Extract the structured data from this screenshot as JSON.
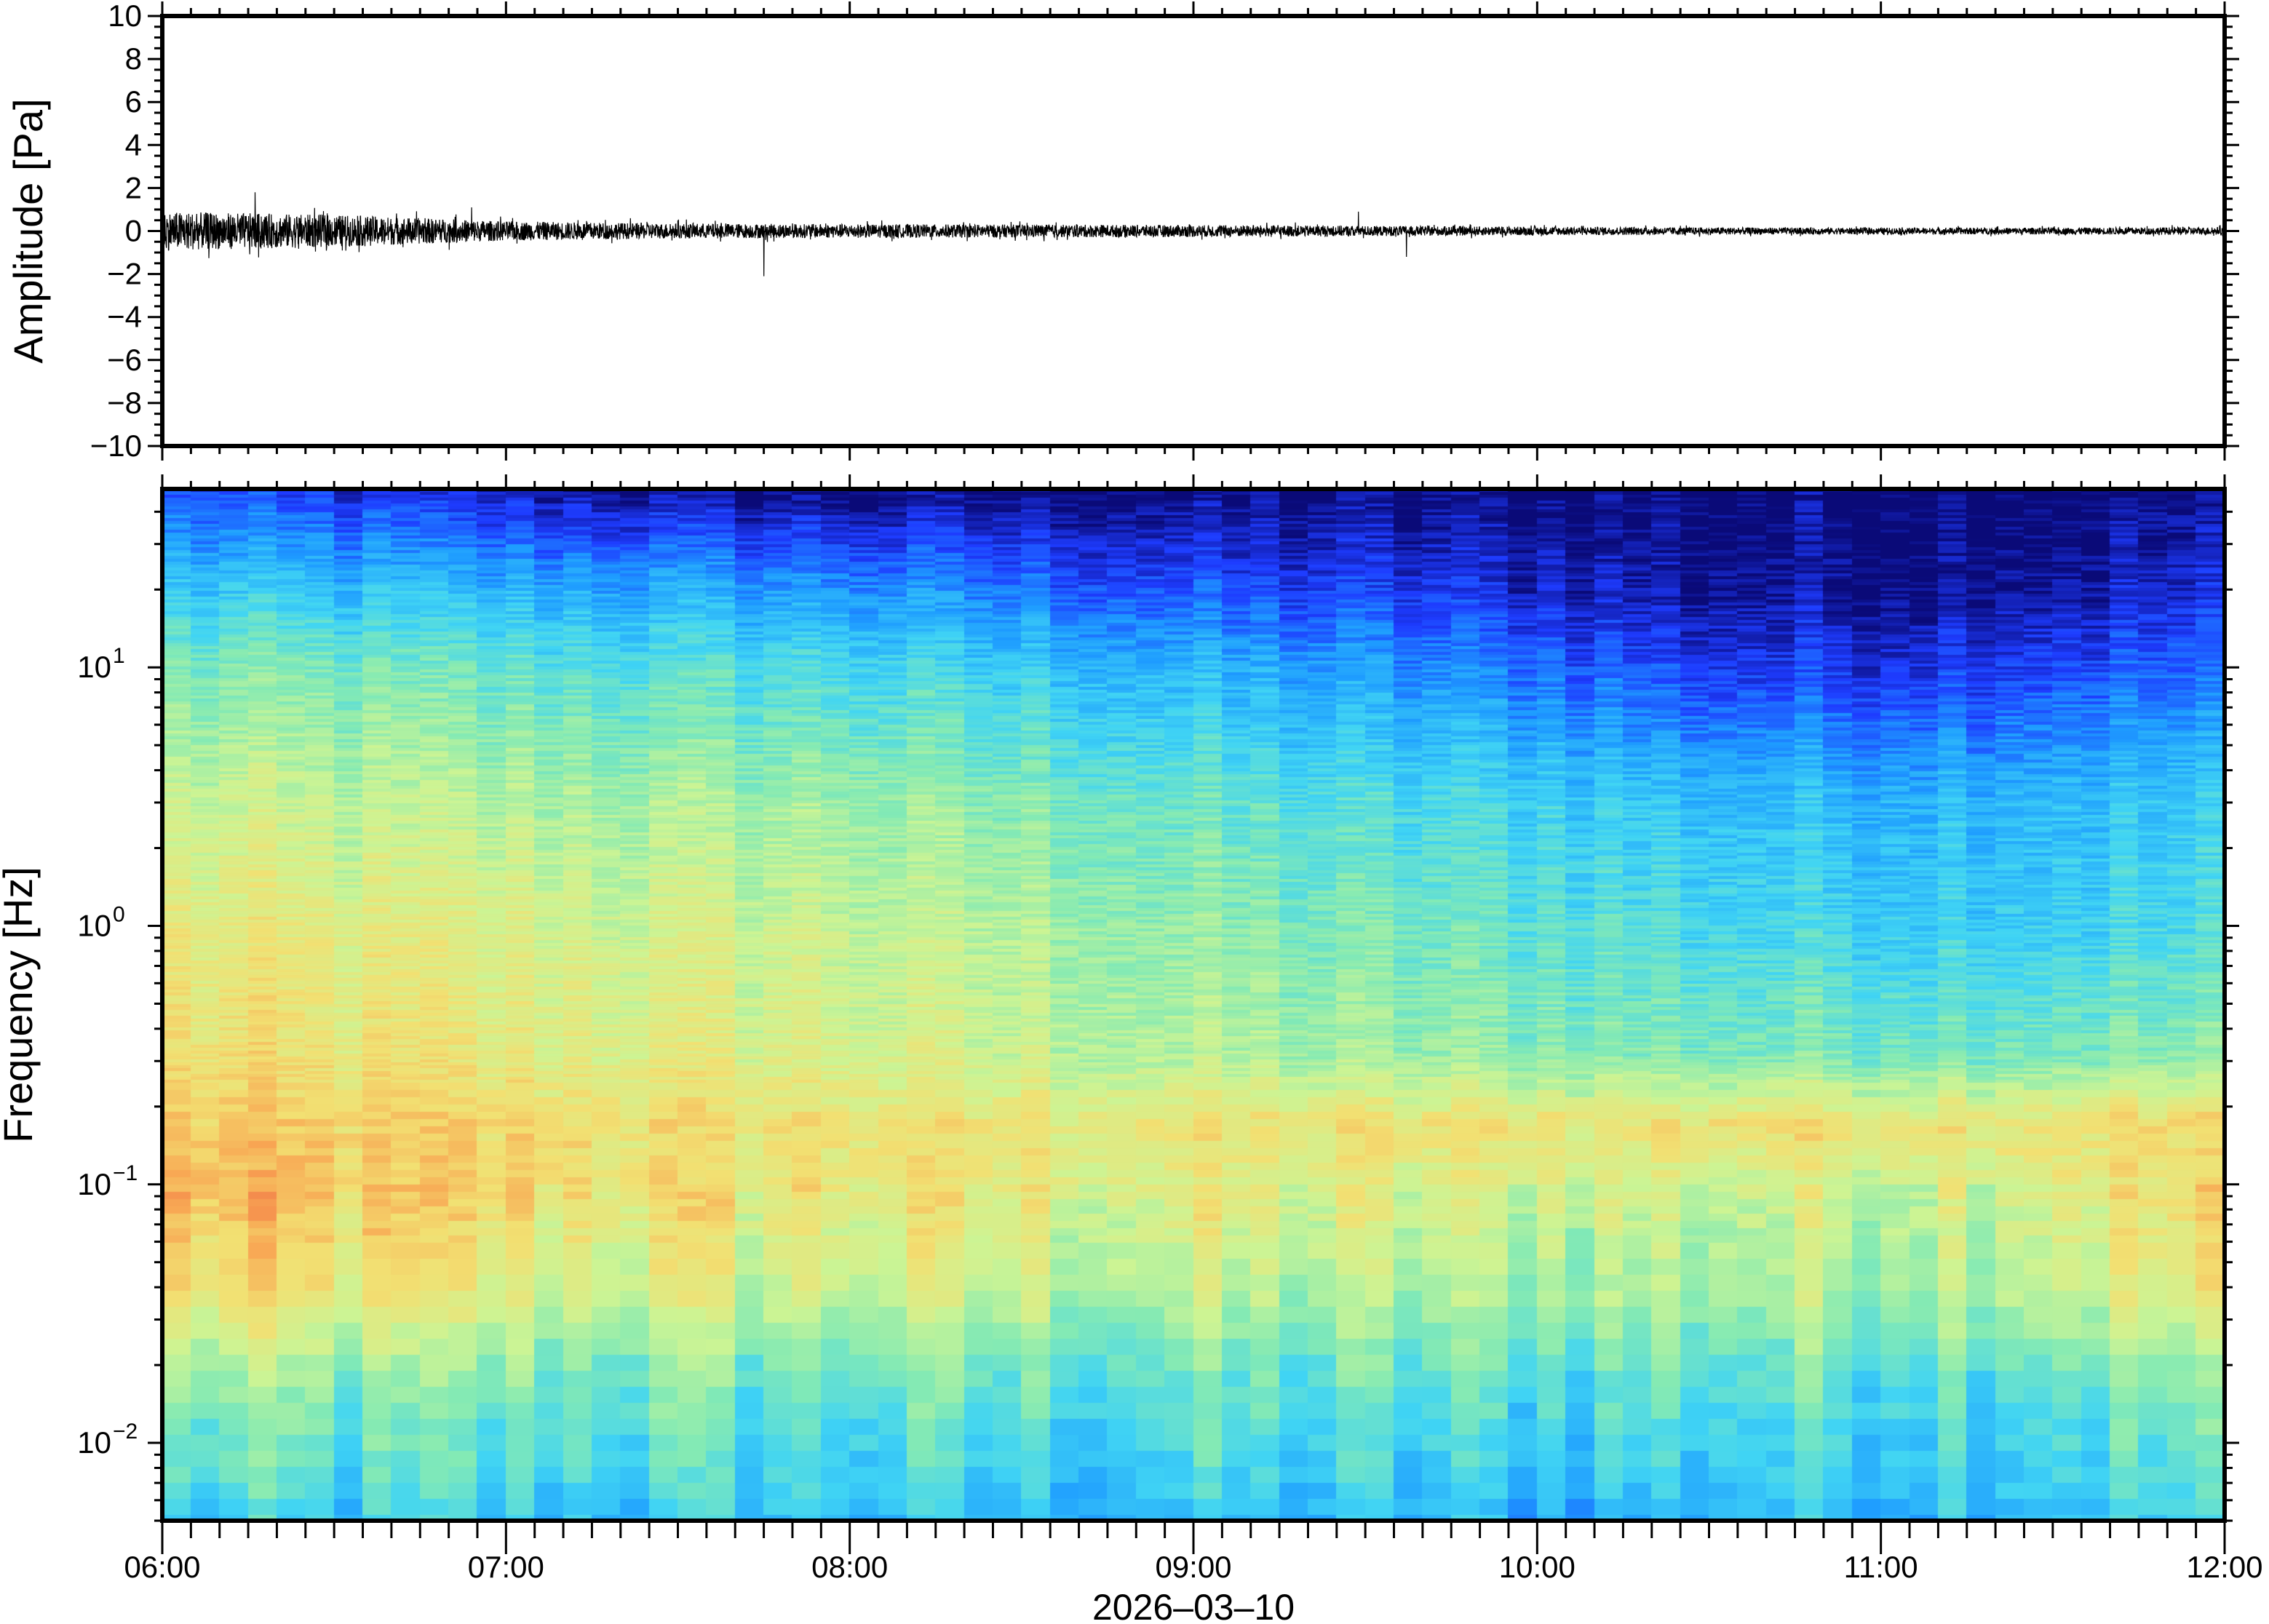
{
  "chart_data": [
    {
      "type": "line",
      "panel": "waveform",
      "ylabel": "Amplitude [Pa]",
      "ylim": [
        -10,
        10
      ],
      "yticks": [
        "10",
        "8",
        "6",
        "4",
        "2",
        "0",
        "−2",
        "−4",
        "−6",
        "−8",
        "−10"
      ],
      "ytick_values": [
        10,
        8,
        6,
        4,
        2,
        0,
        -2,
        -4,
        -6,
        -8,
        -10
      ],
      "x_range_hours": [
        6,
        12
      ],
      "envelope_time_hours": [
        6.0,
        6.5,
        7.0,
        7.5,
        8.0,
        8.5,
        9.0,
        9.5,
        10.0,
        10.5,
        11.0,
        11.5,
        12.0
      ],
      "envelope_amplitude_pa": [
        0.9,
        0.75,
        0.45,
        0.35,
        0.32,
        0.3,
        0.28,
        0.24,
        0.2,
        0.17,
        0.15,
        0.16,
        0.18
      ],
      "spikes": [
        {
          "time_hours": 6.27,
          "value_pa": 1.8
        },
        {
          "time_hours": 6.9,
          "value_pa": 1.1
        },
        {
          "time_hours": 7.75,
          "value_pa": -2.1
        },
        {
          "time_hours": 9.48,
          "value_pa": 0.9
        },
        {
          "time_hours": 9.62,
          "value_pa": -1.2
        }
      ],
      "color": "#000000"
    },
    {
      "type": "heatmap",
      "panel": "spectrogram",
      "ylabel": "Frequency [Hz]",
      "xlabel": "2026–03–10",
      "yscale": "log",
      "ylim_hz": [
        0.005,
        49
      ],
      "ytick_bases": [
        "10",
        "10",
        "10",
        "10"
      ],
      "ytick_exponents": [
        "1",
        "0",
        "−1",
        "−2"
      ],
      "ytick_values": [
        10,
        1,
        0.1,
        0.01
      ],
      "xticks": [
        "06:00",
        "07:00",
        "08:00",
        "09:00",
        "10:00",
        "11:00",
        "12:00"
      ],
      "time_hours": [
        6.0,
        6.5,
        7.0,
        7.5,
        8.0,
        8.5,
        9.0,
        9.5,
        10.0,
        10.5,
        11.0,
        11.5,
        12.0
      ],
      "log10_freq": [
        1.69,
        1.3,
        1.0,
        0.5,
        0.0,
        -0.5,
        -0.75,
        -1.0,
        -1.4,
        -1.7,
        -2.3
      ],
      "relative_power": [
        [
          0.15,
          0.1,
          0.05,
          0.02,
          0.0,
          0.0,
          0.0,
          0.0,
          0.0,
          0.0,
          0.0,
          0.0,
          0.0
        ],
        [
          0.35,
          0.33,
          0.3,
          0.28,
          0.25,
          0.2,
          0.15,
          0.12,
          0.08,
          0.03,
          0.03,
          0.05,
          0.08
        ],
        [
          0.5,
          0.48,
          0.45,
          0.42,
          0.4,
          0.35,
          0.3,
          0.25,
          0.2,
          0.12,
          0.12,
          0.15,
          0.18
        ],
        [
          0.62,
          0.6,
          0.58,
          0.56,
          0.55,
          0.5,
          0.45,
          0.4,
          0.38,
          0.33,
          0.32,
          0.33,
          0.35
        ],
        [
          0.7,
          0.68,
          0.66,
          0.64,
          0.62,
          0.58,
          0.52,
          0.48,
          0.45,
          0.4,
          0.38,
          0.38,
          0.4
        ],
        [
          0.75,
          0.72,
          0.7,
          0.68,
          0.66,
          0.62,
          0.58,
          0.55,
          0.52,
          0.5,
          0.5,
          0.5,
          0.52
        ],
        [
          0.8,
          0.78,
          0.76,
          0.74,
          0.73,
          0.72,
          0.72,
          0.72,
          0.73,
          0.74,
          0.74,
          0.75,
          0.76
        ],
        [
          0.85,
          0.8,
          0.76,
          0.74,
          0.72,
          0.7,
          0.68,
          0.66,
          0.65,
          0.64,
          0.64,
          0.7,
          0.75
        ],
        [
          0.72,
          0.7,
          0.66,
          0.64,
          0.62,
          0.6,
          0.58,
          0.56,
          0.56,
          0.56,
          0.58,
          0.64,
          0.68
        ],
        [
          0.55,
          0.52,
          0.5,
          0.5,
          0.48,
          0.46,
          0.45,
          0.44,
          0.44,
          0.45,
          0.46,
          0.48,
          0.5
        ],
        [
          0.36,
          0.35,
          0.35,
          0.34,
          0.33,
          0.33,
          0.32,
          0.3,
          0.3,
          0.32,
          0.33,
          0.35,
          0.36
        ]
      ],
      "colormap": [
        "#0a0a78",
        "#1e3cff",
        "#1e9cff",
        "#40d4f4",
        "#84eab4",
        "#ccf494",
        "#f2e072",
        "#f8a854",
        "#f06a44"
      ]
    }
  ]
}
